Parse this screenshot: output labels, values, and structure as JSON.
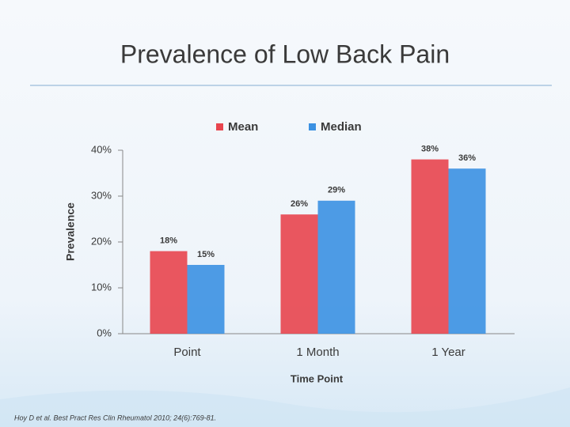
{
  "chart_data": {
    "type": "bar",
    "title": "Prevalence of Low Back Pain",
    "x_label": "Time Point",
    "y_label": "Prevalence",
    "categories": [
      "Point",
      "1 Month",
      "1 Year"
    ],
    "series": [
      {
        "name": "Mean",
        "color": "#e8454e",
        "values": [
          18,
          26,
          38
        ],
        "value_labels": [
          "18%",
          "26%",
          "38%"
        ]
      },
      {
        "name": "Median",
        "color": "#3b91e2",
        "values": [
          15,
          29,
          36
        ],
        "value_labels": [
          "15%",
          "29%",
          "36%"
        ]
      }
    ],
    "ylim": [
      0,
      40
    ],
    "yticks": [
      {
        "value": 0,
        "label": "0%"
      },
      {
        "value": 10,
        "label": "10%"
      },
      {
        "value": 20,
        "label": "20%"
      },
      {
        "value": 30,
        "label": "30%"
      },
      {
        "value": 40,
        "label": "40%"
      }
    ],
    "grid": false,
    "legend": "top"
  },
  "citation": "Hoy D et al. Best Pract Res Clin Rheumatol 2010; 24(6):769-81."
}
